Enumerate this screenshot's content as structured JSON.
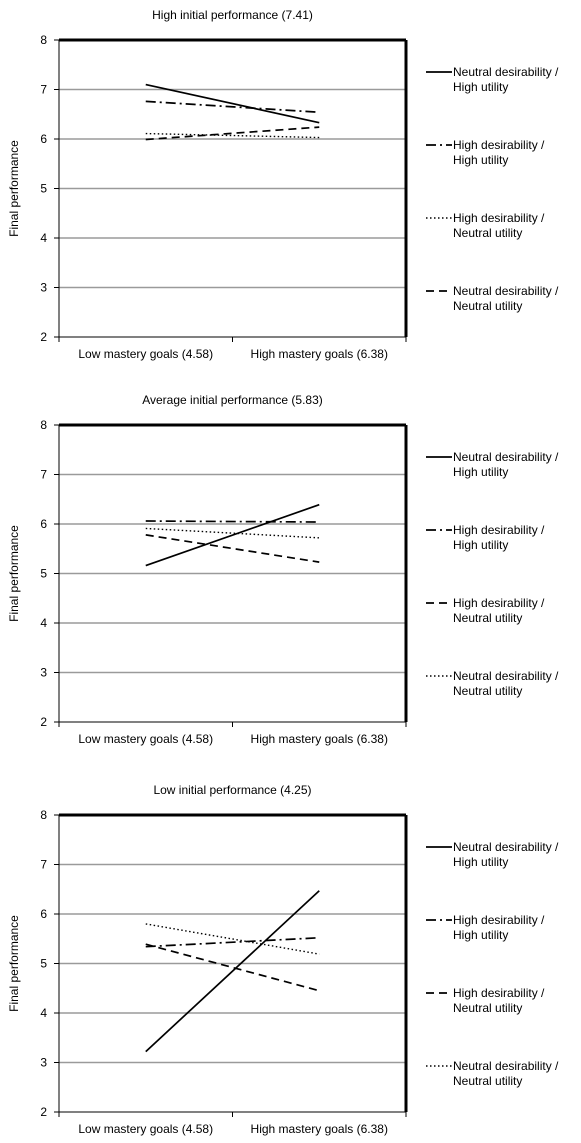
{
  "chart_data": [
    {
      "type": "line",
      "title": "High initial performance (7.41)",
      "xlabel": "",
      "ylabel": "Final performance",
      "ylim": [
        2,
        8
      ],
      "yticks": [
        "2",
        "3",
        "4",
        "5",
        "6",
        "7",
        "8"
      ],
      "grid": true,
      "legend_position": "right",
      "categories": [
        "Low mastery goals (4.58)",
        "High mastery goals (6.38)"
      ],
      "series": [
        {
          "name": "Neutral desirability / High utility",
          "style": "solid",
          "values": [
            7.1,
            6.33
          ]
        },
        {
          "name": "High desirability / High utility",
          "style": "dashdot",
          "values": [
            6.76,
            6.54
          ]
        },
        {
          "name": "High desirability / Neutral utility",
          "style": "dotted",
          "values": [
            6.11,
            6.03
          ]
        },
        {
          "name": "Neutral desirability / Neutral utility",
          "style": "dashed",
          "values": [
            5.99,
            6.24
          ]
        }
      ]
    },
    {
      "type": "line",
      "title": "Average initial performance (5.83)",
      "xlabel": "",
      "ylabel": "Final performance",
      "ylim": [
        2,
        8
      ],
      "yticks": [
        "2",
        "3",
        "4",
        "5",
        "6",
        "7",
        "8"
      ],
      "grid": true,
      "legend_position": "right",
      "categories": [
        "Low mastery goals (4.58)",
        "High mastery goals (6.38)"
      ],
      "series": [
        {
          "name": "Neutral desirability / High utility",
          "style": "solid",
          "values": [
            5.16,
            6.39
          ]
        },
        {
          "name": "High desirability / High utility",
          "style": "dashdot",
          "values": [
            6.06,
            6.04
          ]
        },
        {
          "name": "High desirability / Neutral utility",
          "style": "dashed",
          "values": [
            5.78,
            5.23
          ]
        },
        {
          "name": "Neutral desirability / Neutral utility",
          "style": "dotted",
          "values": [
            5.91,
            5.72
          ]
        }
      ]
    },
    {
      "type": "line",
      "title": "Low initial performance (4.25)",
      "xlabel": "",
      "ylabel": "Final performance",
      "ylim": [
        2,
        8
      ],
      "yticks": [
        "2",
        "3",
        "4",
        "5",
        "6",
        "7",
        "8"
      ],
      "grid": true,
      "legend_position": "right",
      "categories": [
        "Low mastery goals (4.58)",
        "High mastery goals (6.38)"
      ],
      "series": [
        {
          "name": "Neutral desirability / High utility",
          "style": "solid",
          "values": [
            3.22,
            6.47
          ]
        },
        {
          "name": "High desirability / High utility",
          "style": "dashdot",
          "values": [
            5.34,
            5.52
          ]
        },
        {
          "name": "High desirability / Neutral utility",
          "style": "dashed",
          "values": [
            5.39,
            4.45
          ]
        },
        {
          "name": "Neutral desirability / Neutral utility",
          "style": "dotted",
          "values": [
            5.8,
            5.19
          ]
        }
      ]
    }
  ]
}
